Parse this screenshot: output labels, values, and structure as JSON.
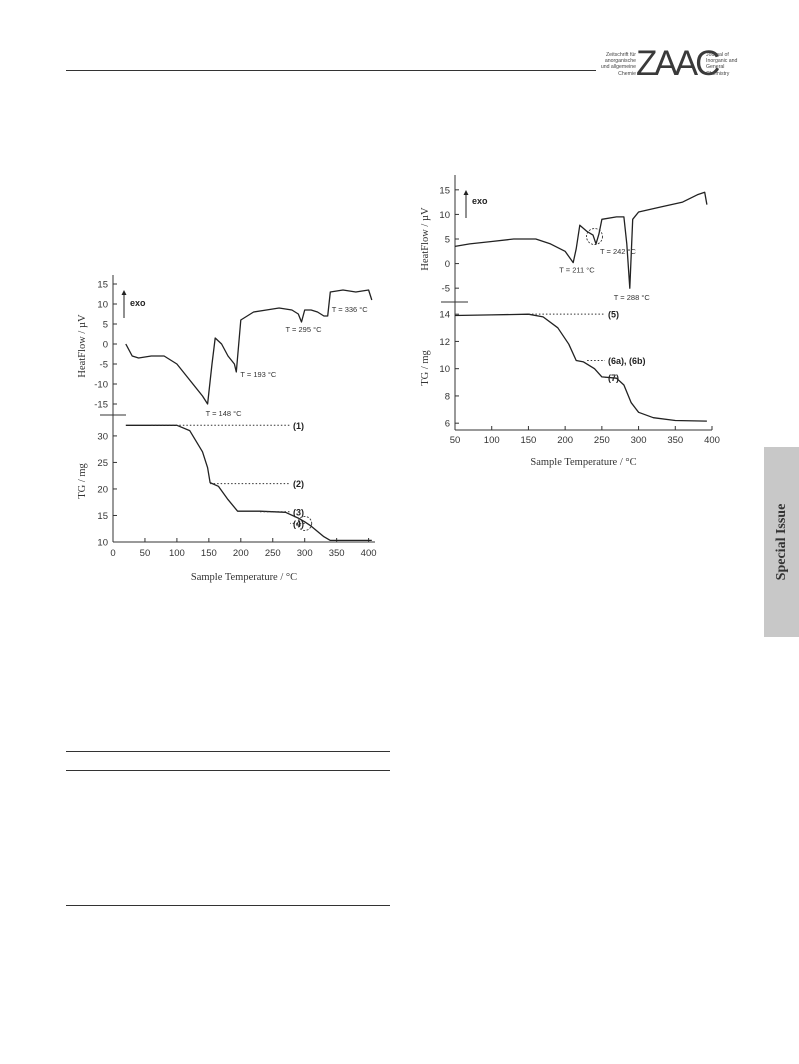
{
  "header": {
    "logo_text": "ZAAC",
    "logo_left": [
      "Zeitschrift für",
      "anorganische",
      "und allgemeine",
      "Chemie"
    ],
    "logo_right": [
      "Journal of",
      "Inorganic and",
      "General",
      "Chemistry"
    ]
  },
  "side_tab": {
    "label": "Special Issue"
  },
  "chart_data": [
    {
      "type": "line",
      "panel": "DSC (top) / TG (bottom), left figure",
      "xlabel": "Sample Temperature / °C",
      "xlim": [
        0,
        410
      ],
      "x_ticks": [
        0,
        50,
        100,
        150,
        200,
        250,
        300,
        350,
        400
      ],
      "dsc": {
        "ylabel": "HeatFlow / µV",
        "ylim": [
          -17,
          16
        ],
        "y_ticks": [
          15,
          10,
          5,
          0,
          -5,
          -10,
          -15
        ],
        "exo_label": "exo",
        "points": [
          [
            20,
            0
          ],
          [
            30,
            -3
          ],
          [
            40,
            -3.5
          ],
          [
            60,
            -3
          ],
          [
            80,
            -3
          ],
          [
            100,
            -5
          ],
          [
            120,
            -9
          ],
          [
            140,
            -13
          ],
          [
            148,
            -15
          ],
          [
            155,
            -5
          ],
          [
            160,
            1.5
          ],
          [
            170,
            0
          ],
          [
            180,
            -3
          ],
          [
            190,
            -5
          ],
          [
            193,
            -7
          ],
          [
            200,
            6
          ],
          [
            220,
            8
          ],
          [
            240,
            8.5
          ],
          [
            260,
            9
          ],
          [
            280,
            8.5
          ],
          [
            290,
            7.5
          ],
          [
            295,
            5.5
          ],
          [
            300,
            8.5
          ],
          [
            310,
            8.5
          ],
          [
            320,
            8
          ],
          [
            330,
            7
          ],
          [
            336,
            7
          ],
          [
            340,
            13
          ],
          [
            360,
            13.5
          ],
          [
            380,
            13
          ],
          [
            400,
            13.5
          ],
          [
            405,
            11
          ]
        ],
        "annotations": [
          {
            "text": "T = 148 °C",
            "x": 148,
            "y": -15
          },
          {
            "text": "T = 193 °C",
            "x": 193,
            "y": -7
          },
          {
            "text": "T = 295 °C",
            "x": 295,
            "y": 5.5
          },
          {
            "text": "T = 336 °C",
            "x": 336,
            "y": 7
          }
        ]
      },
      "tg": {
        "ylabel": "TG / mg",
        "ylim": [
          10,
          33
        ],
        "y_ticks": [
          30,
          25,
          20,
          15,
          10
        ],
        "points": [
          [
            20,
            32
          ],
          [
            60,
            32
          ],
          [
            100,
            32
          ],
          [
            120,
            31
          ],
          [
            140,
            27
          ],
          [
            148,
            24
          ],
          [
            152,
            21.2
          ],
          [
            165,
            20.5
          ],
          [
            180,
            18
          ],
          [
            195,
            15.8
          ],
          [
            230,
            15.8
          ],
          [
            270,
            15.6
          ],
          [
            290,
            14.5
          ],
          [
            300,
            13.8
          ],
          [
            310,
            13
          ],
          [
            330,
            11
          ],
          [
            340,
            10.3
          ],
          [
            405,
            10.3
          ]
        ],
        "step_labels": [
          {
            "text": "(1)",
            "x": 60,
            "y": 32
          },
          {
            "text": "(2)",
            "x": 152,
            "y": 21
          },
          {
            "text": "(3)",
            "x": 230,
            "y": 15.7
          },
          {
            "text": "(4)",
            "x": 300,
            "y": 13.5
          }
        ]
      }
    },
    {
      "type": "line",
      "panel": "DSC (top) / TG (bottom), right figure",
      "xlabel": "Sample Temperature / °C",
      "xlim": [
        50,
        400
      ],
      "x_ticks": [
        50,
        100,
        150,
        200,
        250,
        300,
        350,
        400
      ],
      "dsc": {
        "ylabel": "HeatFlow / µV",
        "ylim": [
          -7,
          17
        ],
        "y_ticks": [
          15,
          10,
          5,
          0,
          -5
        ],
        "exo_label": "exo",
        "points": [
          [
            50,
            3.5
          ],
          [
            70,
            4
          ],
          [
            100,
            4.5
          ],
          [
            130,
            5
          ],
          [
            160,
            5
          ],
          [
            180,
            4
          ],
          [
            200,
            2.5
          ],
          [
            211,
            0.2
          ],
          [
            215,
            3
          ],
          [
            220,
            7.8
          ],
          [
            230,
            6.5
          ],
          [
            238,
            5.8
          ],
          [
            242,
            4
          ],
          [
            246,
            6
          ],
          [
            250,
            9
          ],
          [
            270,
            9.5
          ],
          [
            280,
            9.5
          ],
          [
            284,
            4
          ],
          [
            288,
            -5
          ],
          [
            292,
            9
          ],
          [
            300,
            10.5
          ],
          [
            330,
            11.5
          ],
          [
            360,
            12.5
          ],
          [
            380,
            14
          ],
          [
            390,
            14.5
          ],
          [
            393,
            12
          ]
        ],
        "annotations": [
          {
            "text": "T = 211 °C",
            "x": 211,
            "y": 0.2
          },
          {
            "text": "T = 242 °C",
            "x": 242,
            "y": 4
          },
          {
            "text": "T = 288 °C",
            "x": 288,
            "y": -5
          }
        ]
      },
      "tg": {
        "ylabel": "TG / mg",
        "ylim": [
          5.5,
          14.6
        ],
        "y_ticks": [
          14,
          12,
          10,
          8,
          6
        ],
        "points": [
          [
            50,
            13.9
          ],
          [
            100,
            13.95
          ],
          [
            150,
            14
          ],
          [
            170,
            13.8
          ],
          [
            190,
            13
          ],
          [
            205,
            11.8
          ],
          [
            215,
            10.6
          ],
          [
            225,
            10.5
          ],
          [
            240,
            10
          ],
          [
            250,
            9.4
          ],
          [
            270,
            9.3
          ],
          [
            280,
            8.8
          ],
          [
            290,
            7.5
          ],
          [
            300,
            6.8
          ],
          [
            320,
            6.4
          ],
          [
            350,
            6.2
          ],
          [
            393,
            6.15
          ]
        ],
        "step_labels": [
          {
            "text": "(5)",
            "x": 150,
            "y": 14
          },
          {
            "text": "(6a), (6b)",
            "x": 230,
            "y": 10.6
          },
          {
            "text": "(7)",
            "x": 255,
            "y": 9.35
          }
        ]
      }
    }
  ]
}
